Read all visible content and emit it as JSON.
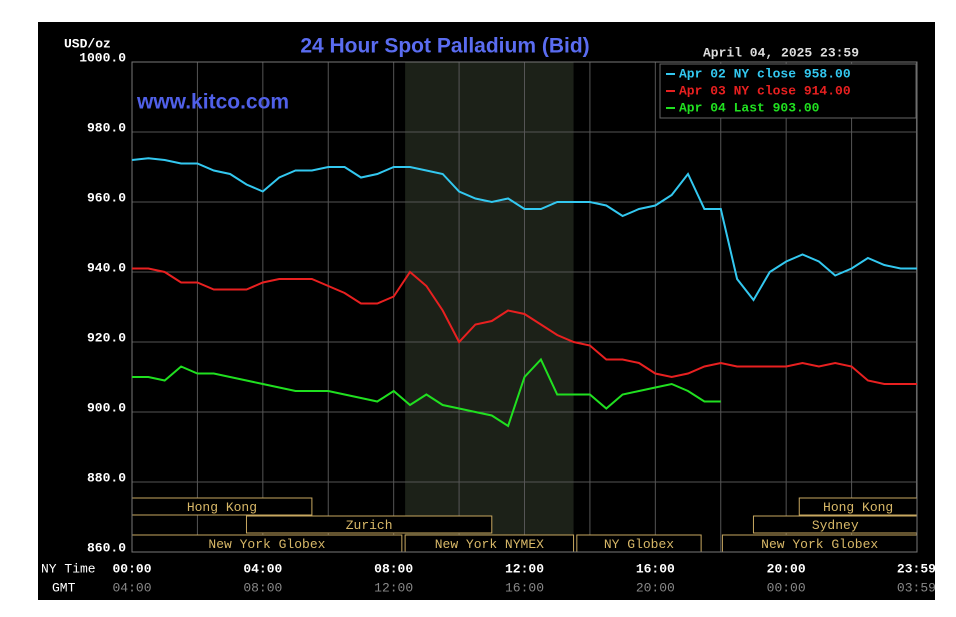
{
  "chart_data": {
    "type": "line",
    "title": "24 Hour Spot Palladium (Bid)",
    "y_label": "USD/oz",
    "timestamp": "April 04, 2025 23:59",
    "watermark": "www.kitco.com",
    "x_row_labels": [
      "NY Time",
      "GMT"
    ],
    "x": [
      0,
      0.5,
      1,
      1.5,
      2,
      2.5,
      3,
      3.5,
      4,
      4.5,
      5,
      5.5,
      6,
      6.5,
      7,
      7.5,
      8,
      8.5,
      9,
      9.5,
      10,
      10.5,
      11,
      11.5,
      12,
      12.5,
      13,
      13.5,
      14,
      14.5,
      15,
      15.5,
      16,
      16.5,
      17,
      17.5,
      18,
      18.5,
      19,
      19.5,
      20,
      20.5,
      21,
      21.5,
      22,
      22.5,
      23,
      23.5,
      24
    ],
    "series": [
      {
        "name": "Apr 02 NY close 958.00",
        "color": "#33c8f0",
        "values": [
          972,
          972.5,
          972,
          971,
          971,
          969,
          968,
          965,
          963,
          967,
          969,
          969,
          970,
          970,
          967,
          968,
          970,
          970,
          969,
          968,
          963,
          961,
          960,
          961,
          958,
          958,
          960,
          960,
          960,
          959,
          956,
          958,
          959,
          962,
          968,
          958,
          958,
          938,
          932,
          940,
          943,
          945,
          943,
          939,
          941,
          944,
          942,
          941,
          941
        ]
      },
      {
        "name": "Apr 03 NY close 914.00",
        "color": "#e82020",
        "values": [
          941,
          941,
          940,
          937,
          937,
          935,
          935,
          935,
          937,
          938,
          938,
          938,
          936,
          934,
          931,
          931,
          933,
          940,
          936,
          929,
          920,
          925,
          926,
          929,
          928,
          925,
          922,
          920,
          919,
          915,
          915,
          914,
          911,
          910,
          911,
          913,
          914,
          913,
          913,
          913,
          913,
          914,
          913,
          914,
          913,
          909,
          908,
          908,
          908
        ]
      },
      {
        "name": "Apr 04 Last 903.00",
        "color": "#20e020",
        "values": [
          910,
          910,
          909,
          913,
          911,
          911,
          910,
          909,
          908,
          907,
          906,
          906,
          906,
          905,
          904,
          903,
          906,
          902,
          905,
          902,
          901,
          900,
          899,
          896,
          910,
          915,
          905,
          905,
          905,
          901,
          905,
          906,
          907,
          908,
          906,
          903,
          903,
          null,
          null,
          null,
          null,
          null,
          null,
          null,
          null,
          null,
          null,
          null,
          null
        ]
      }
    ],
    "xlim": [
      0,
      24
    ],
    "xticks": [
      {
        "value": 0,
        "label": "00:00"
      },
      {
        "value": 4,
        "label": "04:00"
      },
      {
        "value": 8,
        "label": "08:00"
      },
      {
        "value": 12,
        "label": "12:00"
      },
      {
        "value": 16,
        "label": "16:00"
      },
      {
        "value": 20,
        "label": "20:00"
      },
      {
        "value": 23.983,
        "label": "23:59"
      }
    ],
    "gmt_tick_labels": [
      "04:00",
      "08:00",
      "12:00",
      "16:00",
      "20:00",
      "00:00",
      "03:59"
    ],
    "x_minor_grid": [
      2,
      6,
      10,
      14,
      18,
      22
    ],
    "ylim": [
      860,
      1000
    ],
    "yticks": [
      {
        "value": 860,
        "label": "860.0"
      },
      {
        "value": 880,
        "label": "880.0"
      },
      {
        "value": 900,
        "label": "900.0"
      },
      {
        "value": 920,
        "label": "920.0"
      },
      {
        "value": 940,
        "label": "940.0"
      },
      {
        "value": 960,
        "label": "960.0"
      },
      {
        "value": 980,
        "label": "980.0"
      },
      {
        "value": 1000,
        "label": "1000.0"
      }
    ],
    "grid": true,
    "shaded_span": [
      8.35,
      13.5
    ],
    "sessions": [
      {
        "label": "Hong Kong",
        "start": 0,
        "end": 5.5,
        "row": 0
      },
      {
        "label": "Hong Kong",
        "start": 20.4,
        "end": 24,
        "row": 0
      },
      {
        "label": "Zurich",
        "start": 3.5,
        "end": 11,
        "row": 1
      },
      {
        "label": "Sydney",
        "start": 19,
        "end": 24,
        "row": 1
      },
      {
        "label": "New York Globex",
        "start": 0,
        "end": 8.25,
        "row": 2
      },
      {
        "label": "New York NYMEX",
        "start": 8.35,
        "end": 13.5,
        "row": 2
      },
      {
        "label": "NY Globex",
        "start": 13.6,
        "end": 17.4,
        "row": 2
      },
      {
        "label": "New York Globex",
        "start": 18.05,
        "end": 24,
        "row": 2
      }
    ]
  }
}
